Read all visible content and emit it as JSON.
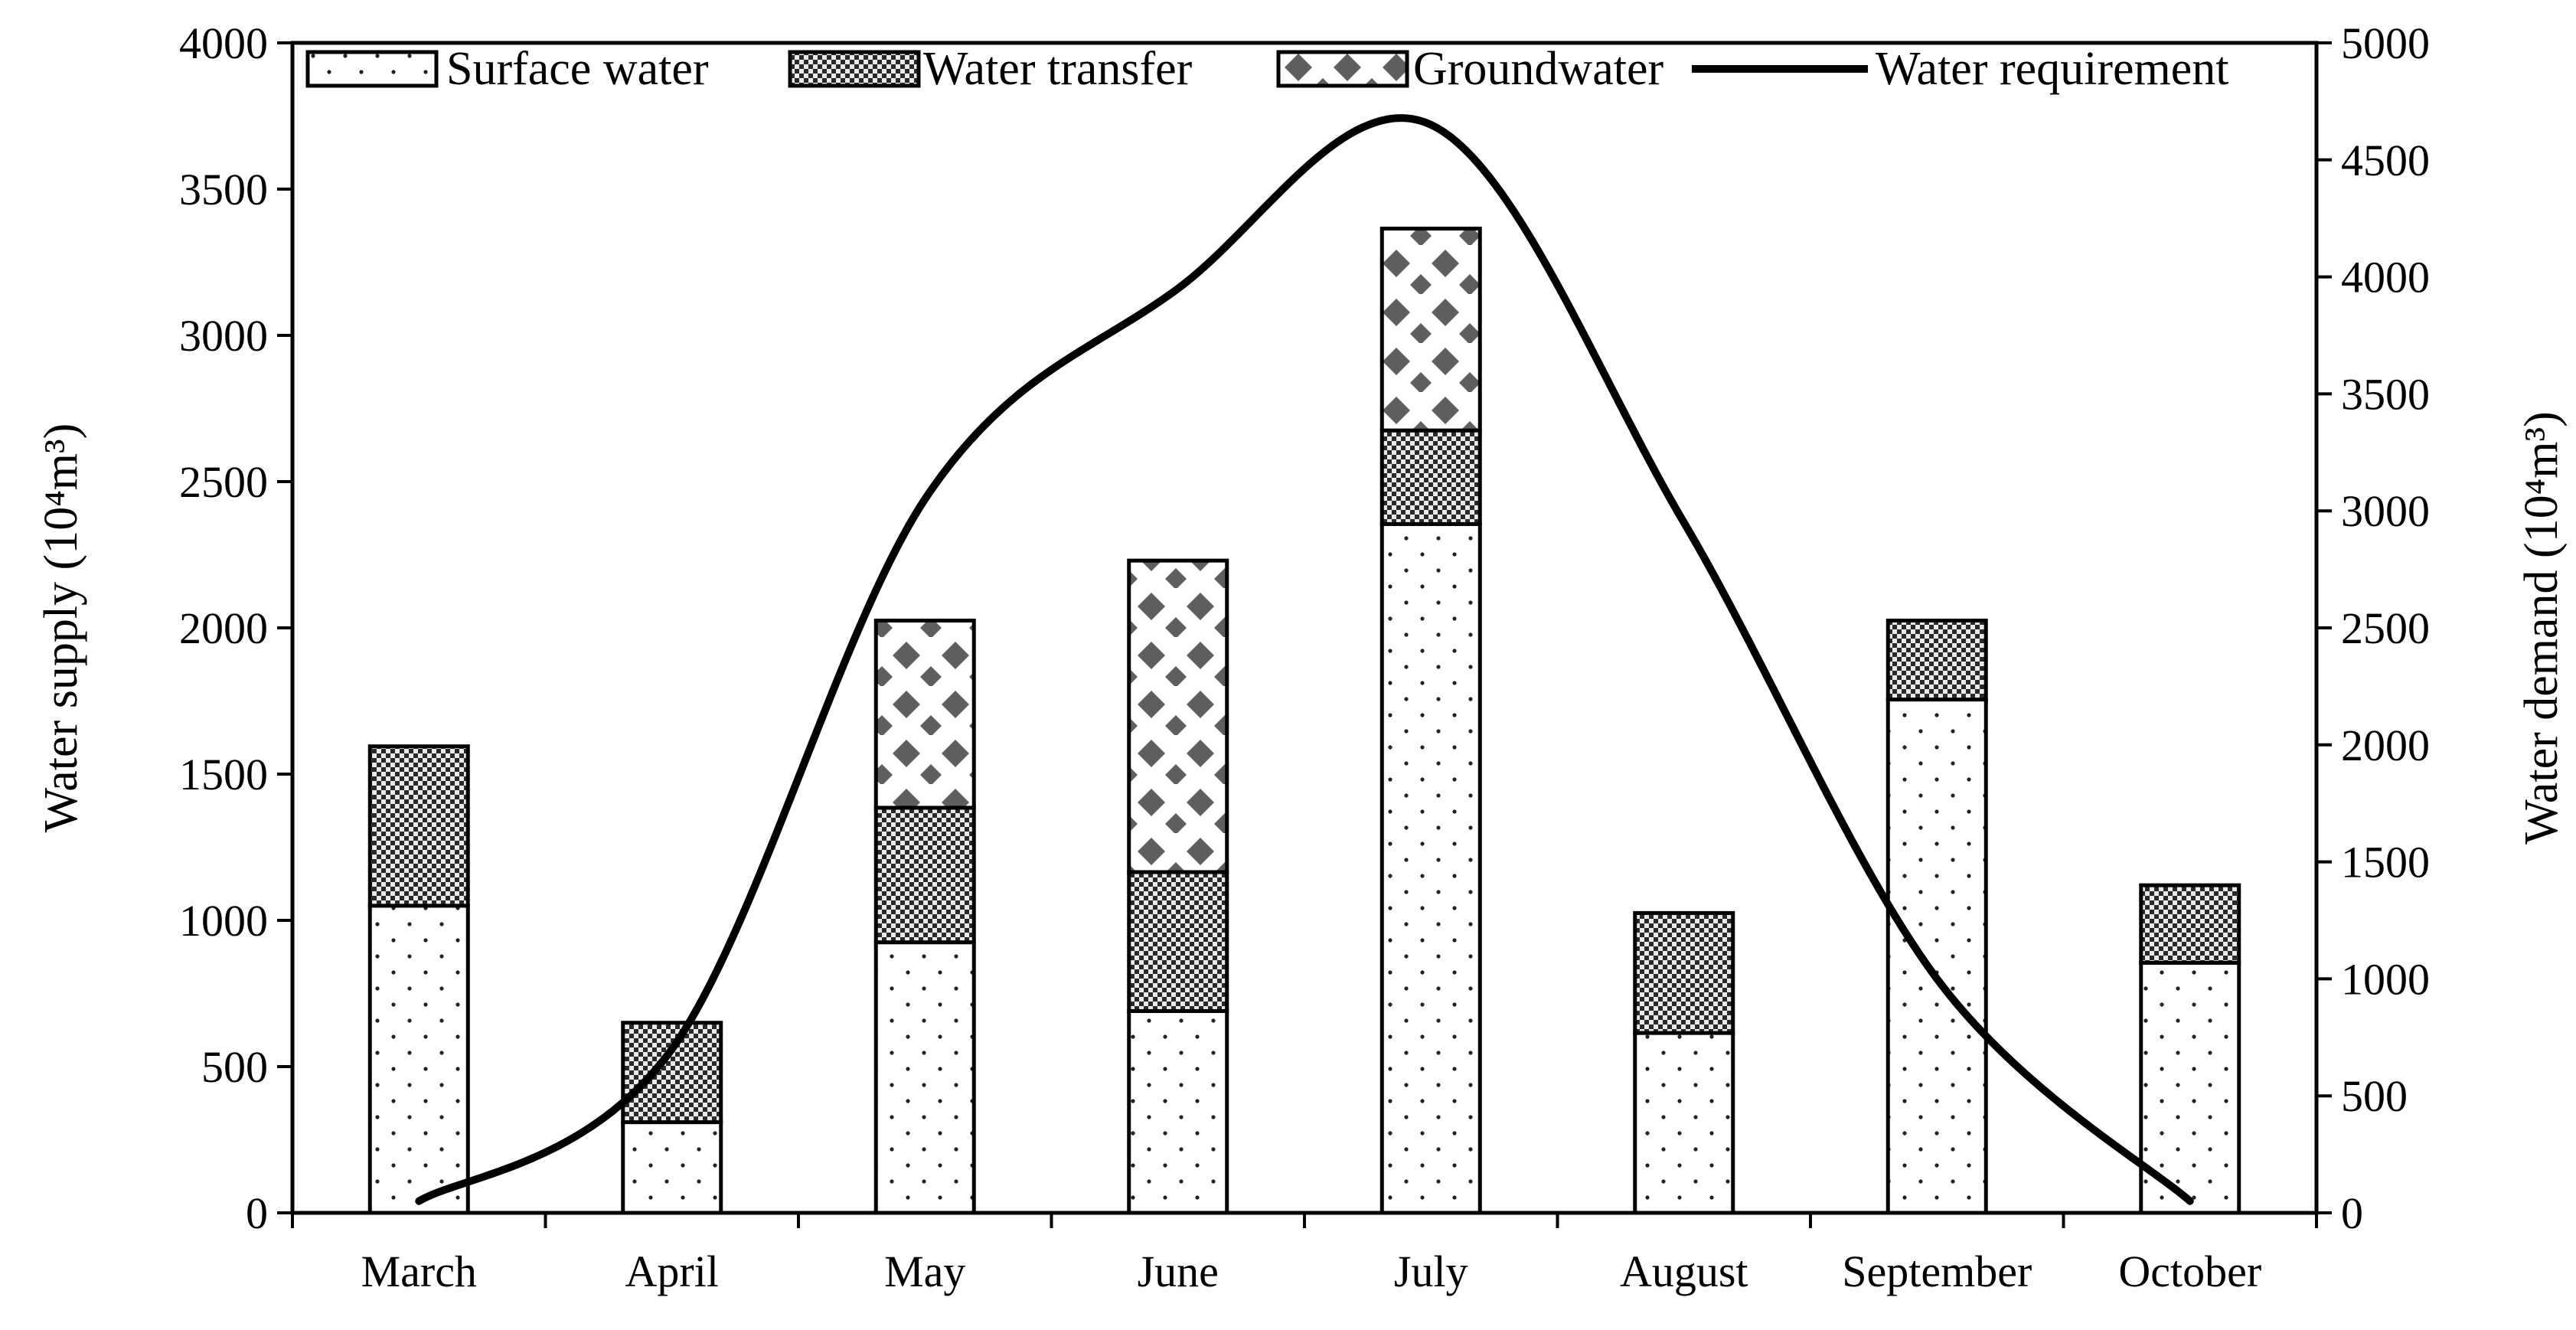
{
  "chart_data": {
    "type": "bar",
    "subtype": "stacked-bar-with-line",
    "title": "",
    "categories": [
      "March",
      "April",
      "May",
      "June",
      "July",
      "August",
      "September",
      "October"
    ],
    "series": [
      {
        "name": "Surface water",
        "axis": "left",
        "values": [
          1050,
          310,
          925,
          690,
          2355,
          615,
          1755,
          855
        ]
      },
      {
        "name": "Water transfer",
        "axis": "left",
        "values": [
          545,
          340,
          460,
          475,
          320,
          410,
          270,
          265
        ]
      },
      {
        "name": "Groundwater",
        "axis": "left",
        "values": [
          0,
          0,
          640,
          1065,
          690,
          0,
          0,
          0
        ]
      },
      {
        "name": "Water requirement",
        "axis": "right",
        "type": "line",
        "values": [
          50,
          700,
          3050,
          3950,
          4650,
          2950,
          1000,
          50
        ]
      }
    ],
    "ylabel_left": "Water supply (10⁴m³)",
    "ylabel_right": "Water demand (10⁴m³)",
    "xlabel": "",
    "ylim_left": [
      0,
      4000
    ],
    "ylim_right": [
      0,
      5000
    ],
    "yticks_left": [
      "0",
      "500",
      "1000",
      "1500",
      "2000",
      "2500",
      "3000",
      "3500",
      "4000"
    ],
    "yticks_right": [
      "0",
      "500",
      "1000",
      "1500",
      "2000",
      "2500",
      "3000",
      "3500",
      "4000",
      "4500",
      "5000"
    ],
    "legend": [
      "Surface water",
      "Water transfer",
      "Groundwater",
      "Water requirement"
    ],
    "legend_position": "top",
    "grid": false
  }
}
